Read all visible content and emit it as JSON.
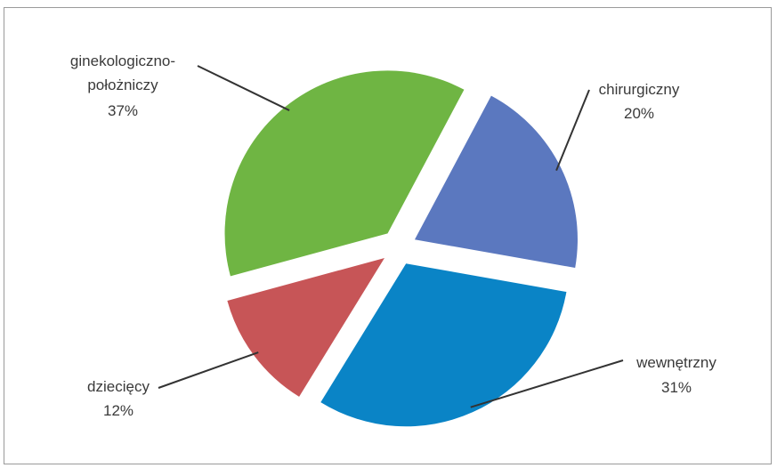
{
  "chart_data": {
    "type": "pie",
    "exploded": true,
    "slices": [
      {
        "label": "chirurgiczny",
        "value": 20,
        "value_label": "20%",
        "color": "#5b78bf"
      },
      {
        "label": "wewnętrzny",
        "value": 31,
        "value_label": "31%",
        "color": "#0a84c6"
      },
      {
        "label": "dziecięcy",
        "value": 12,
        "value_label": "12%",
        "color": "#c75557"
      },
      {
        "label_lines": [
          "ginekologiczno-",
          "położniczy"
        ],
        "label": "ginekologiczno-położniczy",
        "value": 37,
        "value_label": "37%",
        "color": "#6fb543"
      }
    ]
  }
}
